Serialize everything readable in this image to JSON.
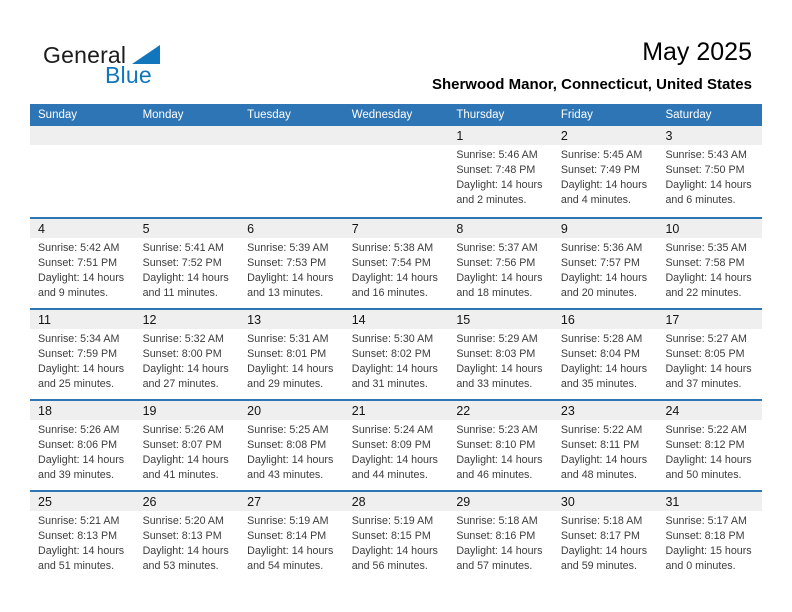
{
  "logo": {
    "part1": "General",
    "part2": "Blue"
  },
  "header": {
    "title": "May 2025",
    "subtitle": "Sherwood Manor, Connecticut, United States"
  },
  "colors": {
    "header_blue": "#2E75B5",
    "line_blue": "#2E75B5",
    "band_gray": "#EFEFEF",
    "logo_blue": "#1276BD"
  },
  "calendar": {
    "day_headers": [
      "Sunday",
      "Monday",
      "Tuesday",
      "Wednesday",
      "Thursday",
      "Friday",
      "Saturday"
    ],
    "weeks": [
      {
        "days": [
          null,
          null,
          null,
          null,
          {
            "num": "1",
            "sunrise": "Sunrise: 5:46 AM",
            "sunset": "Sunset: 7:48 PM",
            "daylight1": "Daylight: 14 hours",
            "daylight2": "and 2 minutes."
          },
          {
            "num": "2",
            "sunrise": "Sunrise: 5:45 AM",
            "sunset": "Sunset: 7:49 PM",
            "daylight1": "Daylight: 14 hours",
            "daylight2": "and 4 minutes."
          },
          {
            "num": "3",
            "sunrise": "Sunrise: 5:43 AM",
            "sunset": "Sunset: 7:50 PM",
            "daylight1": "Daylight: 14 hours",
            "daylight2": "and 6 minutes."
          }
        ]
      },
      {
        "days": [
          {
            "num": "4",
            "sunrise": "Sunrise: 5:42 AM",
            "sunset": "Sunset: 7:51 PM",
            "daylight1": "Daylight: 14 hours",
            "daylight2": "and 9 minutes."
          },
          {
            "num": "5",
            "sunrise": "Sunrise: 5:41 AM",
            "sunset": "Sunset: 7:52 PM",
            "daylight1": "Daylight: 14 hours",
            "daylight2": "and 11 minutes."
          },
          {
            "num": "6",
            "sunrise": "Sunrise: 5:39 AM",
            "sunset": "Sunset: 7:53 PM",
            "daylight1": "Daylight: 14 hours",
            "daylight2": "and 13 minutes."
          },
          {
            "num": "7",
            "sunrise": "Sunrise: 5:38 AM",
            "sunset": "Sunset: 7:54 PM",
            "daylight1": "Daylight: 14 hours",
            "daylight2": "and 16 minutes."
          },
          {
            "num": "8",
            "sunrise": "Sunrise: 5:37 AM",
            "sunset": "Sunset: 7:56 PM",
            "daylight1": "Daylight: 14 hours",
            "daylight2": "and 18 minutes."
          },
          {
            "num": "9",
            "sunrise": "Sunrise: 5:36 AM",
            "sunset": "Sunset: 7:57 PM",
            "daylight1": "Daylight: 14 hours",
            "daylight2": "and 20 minutes."
          },
          {
            "num": "10",
            "sunrise": "Sunrise: 5:35 AM",
            "sunset": "Sunset: 7:58 PM",
            "daylight1": "Daylight: 14 hours",
            "daylight2": "and 22 minutes."
          }
        ]
      },
      {
        "days": [
          {
            "num": "11",
            "sunrise": "Sunrise: 5:34 AM",
            "sunset": "Sunset: 7:59 PM",
            "daylight1": "Daylight: 14 hours",
            "daylight2": "and 25 minutes."
          },
          {
            "num": "12",
            "sunrise": "Sunrise: 5:32 AM",
            "sunset": "Sunset: 8:00 PM",
            "daylight1": "Daylight: 14 hours",
            "daylight2": "and 27 minutes."
          },
          {
            "num": "13",
            "sunrise": "Sunrise: 5:31 AM",
            "sunset": "Sunset: 8:01 PM",
            "daylight1": "Daylight: 14 hours",
            "daylight2": "and 29 minutes."
          },
          {
            "num": "14",
            "sunrise": "Sunrise: 5:30 AM",
            "sunset": "Sunset: 8:02 PM",
            "daylight1": "Daylight: 14 hours",
            "daylight2": "and 31 minutes."
          },
          {
            "num": "15",
            "sunrise": "Sunrise: 5:29 AM",
            "sunset": "Sunset: 8:03 PM",
            "daylight1": "Daylight: 14 hours",
            "daylight2": "and 33 minutes."
          },
          {
            "num": "16",
            "sunrise": "Sunrise: 5:28 AM",
            "sunset": "Sunset: 8:04 PM",
            "daylight1": "Daylight: 14 hours",
            "daylight2": "and 35 minutes."
          },
          {
            "num": "17",
            "sunrise": "Sunrise: 5:27 AM",
            "sunset": "Sunset: 8:05 PM",
            "daylight1": "Daylight: 14 hours",
            "daylight2": "and 37 minutes."
          }
        ]
      },
      {
        "days": [
          {
            "num": "18",
            "sunrise": "Sunrise: 5:26 AM",
            "sunset": "Sunset: 8:06 PM",
            "daylight1": "Daylight: 14 hours",
            "daylight2": "and 39 minutes."
          },
          {
            "num": "19",
            "sunrise": "Sunrise: 5:26 AM",
            "sunset": "Sunset: 8:07 PM",
            "daylight1": "Daylight: 14 hours",
            "daylight2": "and 41 minutes."
          },
          {
            "num": "20",
            "sunrise": "Sunrise: 5:25 AM",
            "sunset": "Sunset: 8:08 PM",
            "daylight1": "Daylight: 14 hours",
            "daylight2": "and 43 minutes."
          },
          {
            "num": "21",
            "sunrise": "Sunrise: 5:24 AM",
            "sunset": "Sunset: 8:09 PM",
            "daylight1": "Daylight: 14 hours",
            "daylight2": "and 44 minutes."
          },
          {
            "num": "22",
            "sunrise": "Sunrise: 5:23 AM",
            "sunset": "Sunset: 8:10 PM",
            "daylight1": "Daylight: 14 hours",
            "daylight2": "and 46 minutes."
          },
          {
            "num": "23",
            "sunrise": "Sunrise: 5:22 AM",
            "sunset": "Sunset: 8:11 PM",
            "daylight1": "Daylight: 14 hours",
            "daylight2": "and 48 minutes."
          },
          {
            "num": "24",
            "sunrise": "Sunrise: 5:22 AM",
            "sunset": "Sunset: 8:12 PM",
            "daylight1": "Daylight: 14 hours",
            "daylight2": "and 50 minutes."
          }
        ]
      },
      {
        "days": [
          {
            "num": "25",
            "sunrise": "Sunrise: 5:21 AM",
            "sunset": "Sunset: 8:13 PM",
            "daylight1": "Daylight: 14 hours",
            "daylight2": "and 51 minutes."
          },
          {
            "num": "26",
            "sunrise": "Sunrise: 5:20 AM",
            "sunset": "Sunset: 8:13 PM",
            "daylight1": "Daylight: 14 hours",
            "daylight2": "and 53 minutes."
          },
          {
            "num": "27",
            "sunrise": "Sunrise: 5:19 AM",
            "sunset": "Sunset: 8:14 PM",
            "daylight1": "Daylight: 14 hours",
            "daylight2": "and 54 minutes."
          },
          {
            "num": "28",
            "sunrise": "Sunrise: 5:19 AM",
            "sunset": "Sunset: 8:15 PM",
            "daylight1": "Daylight: 14 hours",
            "daylight2": "and 56 minutes."
          },
          {
            "num": "29",
            "sunrise": "Sunrise: 5:18 AM",
            "sunset": "Sunset: 8:16 PM",
            "daylight1": "Daylight: 14 hours",
            "daylight2": "and 57 minutes."
          },
          {
            "num": "30",
            "sunrise": "Sunrise: 5:18 AM",
            "sunset": "Sunset: 8:17 PM",
            "daylight1": "Daylight: 14 hours",
            "daylight2": "and 59 minutes."
          },
          {
            "num": "31",
            "sunrise": "Sunrise: 5:17 AM",
            "sunset": "Sunset: 8:18 PM",
            "daylight1": "Daylight: 15 hours",
            "daylight2": "and 0 minutes."
          }
        ]
      }
    ]
  }
}
